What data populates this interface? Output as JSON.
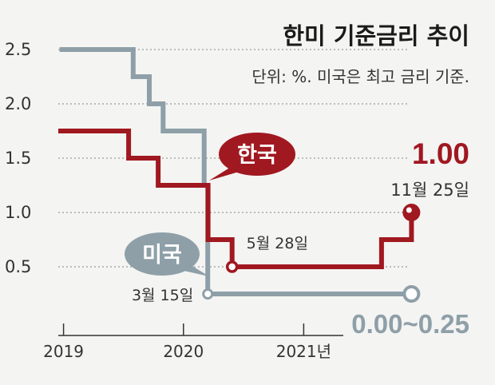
{
  "chart_data": {
    "type": "line",
    "step": true,
    "title": "한미 기준금리 추이",
    "subtitle": "단위: %. 미국은 최고 금리 기준.",
    "x_ticks": [
      {
        "value": "2019-01",
        "label": "2019"
      },
      {
        "value": "2020-01",
        "label": "2020"
      },
      {
        "value": "2021-01",
        "label": "2021년"
      }
    ],
    "y_ticks": [
      {
        "value": 0.5,
        "label": "0.5"
      },
      {
        "value": 1.0,
        "label": "1.0"
      },
      {
        "value": 1.5,
        "label": "1.5"
      },
      {
        "value": 2.0,
        "label": "2.0"
      },
      {
        "value": 2.5,
        "label": "2.5"
      }
    ],
    "ylim": [
      0,
      2.6
    ],
    "xlim": [
      "2018-12-16",
      "2021-11-29"
    ],
    "grid": "horizontal-dotted",
    "series": [
      {
        "name": "미국",
        "color": "#8e9fa8",
        "points": [
          {
            "x": "2018-12-20",
            "y": 2.5
          },
          {
            "x": "2019-08-01",
            "y": 2.25
          },
          {
            "x": "2019-09-19",
            "y": 2.0
          },
          {
            "x": "2019-10-31",
            "y": 1.75
          },
          {
            "x": "2020-03-04",
            "y": 1.25
          },
          {
            "x": "2020-03-15",
            "y": 0.25
          },
          {
            "x": "2021-11-25",
            "y": 0.25
          }
        ],
        "end_label": "0.00~0.25",
        "annotations": [
          {
            "x": "2020-03-15",
            "y": 0.25,
            "text": "3월 15일"
          }
        ]
      },
      {
        "name": "한국",
        "color": "#a01820",
        "points": [
          {
            "x": "2018-12-16",
            "y": 1.75
          },
          {
            "x": "2019-07-18",
            "y": 1.5
          },
          {
            "x": "2019-10-16",
            "y": 1.25
          },
          {
            "x": "2020-03-16",
            "y": 0.75
          },
          {
            "x": "2020-05-28",
            "y": 0.5
          },
          {
            "x": "2021-08-26",
            "y": 0.75
          },
          {
            "x": "2021-11-25",
            "y": 1.0
          }
        ],
        "end_label": "1.00",
        "annotations": [
          {
            "x": "2020-05-28",
            "y": 0.5,
            "text": "5월 28일"
          },
          {
            "x": "2021-11-25",
            "y": 1.0,
            "text": "11월 25일"
          }
        ]
      }
    ]
  }
}
